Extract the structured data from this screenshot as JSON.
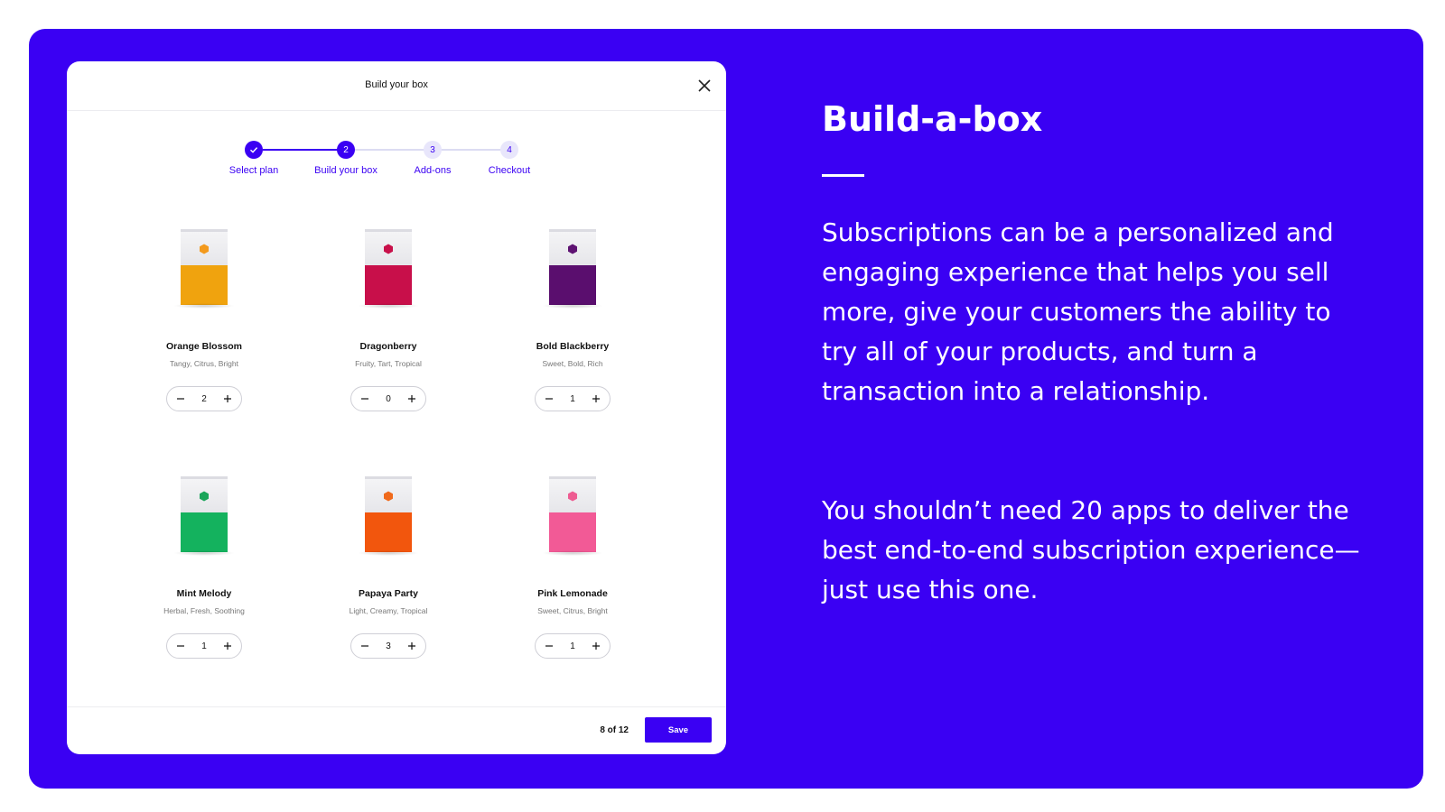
{
  "modal": {
    "title": "Build your box",
    "steps": [
      {
        "label": "Select plan",
        "number": "1",
        "state": "done"
      },
      {
        "label": "Build your box",
        "number": "2",
        "state": "active"
      },
      {
        "label": "Add-ons",
        "number": "3",
        "state": "pending"
      },
      {
        "label": "Checkout",
        "number": "4",
        "state": "pending"
      }
    ],
    "products": [
      {
        "name": "Orange Blossom",
        "notes": "Tangy, Citrus, Bright",
        "qty": "2",
        "color": "#f0a30e",
        "logo_color": "#f39a1e"
      },
      {
        "name": "Dragonberry",
        "notes": "Fruity, Tart, Tropical",
        "qty": "0",
        "color": "#c80f4a",
        "logo_color": "#c8104a"
      },
      {
        "name": "Bold Blackberry",
        "notes": "Sweet, Bold, Rich",
        "qty": "1",
        "color": "#5a0e6e",
        "logo_color": "#5e1272"
      },
      {
        "name": "Mint Melody",
        "notes": "Herbal, Fresh, Soothing",
        "qty": "1",
        "color": "#14b25e",
        "logo_color": "#1aa55a"
      },
      {
        "name": "Papaya Party",
        "notes": "Light, Creamy, Tropical",
        "qty": "3",
        "color": "#f2560d",
        "logo_color": "#f06a1c"
      },
      {
        "name": "Pink Lemonade",
        "notes": "Sweet, Citrus, Bright",
        "qty": "1",
        "color": "#f25a96",
        "logo_color": "#ee5c92"
      }
    ],
    "footer": {
      "count": "8 of 12",
      "save_label": "Save"
    }
  },
  "hero": {
    "headline": "Build-a-box",
    "paragraph_1": "Subscriptions can be a personalized and engaging experience that helps you sell more, give your customers the ability to try all of your products, and turn a transaction into a relationship.",
    "paragraph_2": "You shouldn’t need 20 apps to deliver the best end-to-end subscription experience—just use this one."
  },
  "colors": {
    "brand": "#3a00f3",
    "background": "#ffffff"
  },
  "icons": {
    "close": "close-icon",
    "check": "check-icon",
    "minus": "minus-icon",
    "plus": "plus-icon",
    "bag_logo": "hexagon-logo-icon"
  }
}
